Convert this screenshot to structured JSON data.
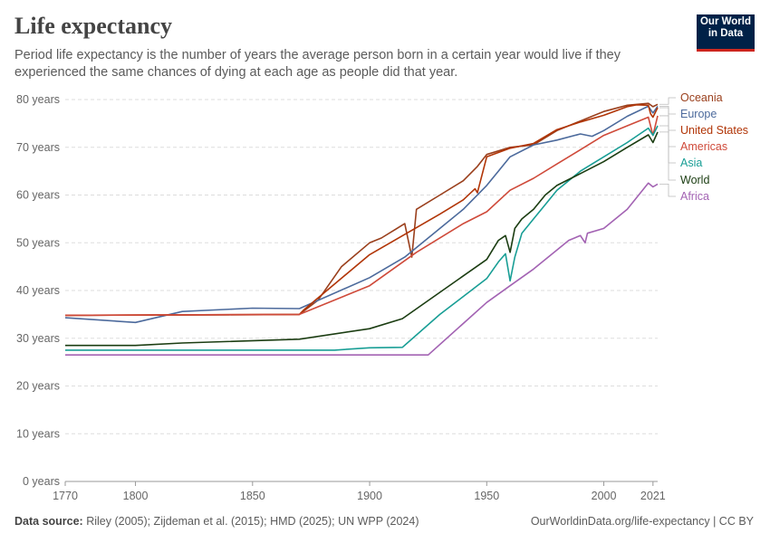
{
  "header": {
    "title": "Life expectancy",
    "subtitle": "Period life expectancy is the number of years the average person born in a certain year would live if they experienced the same chances of dying at each age as people did that year."
  },
  "logo": {
    "line1": "Our World",
    "line2": "in Data",
    "bg": "#002147",
    "accent": "#ce261e"
  },
  "footer": {
    "source_label": "Data source:",
    "source_text": "Riley (2005); Zijdeman et al. (2015); HMD (2025); UN WPP (2024)",
    "link": "OurWorldinData.org/life-expectancy | CC BY"
  },
  "chart_data": {
    "type": "line",
    "xlim": [
      1770,
      2023
    ],
    "ylim": [
      0,
      80
    ],
    "x_ticks": [
      1770,
      1800,
      1850,
      1900,
      1950,
      2000,
      2021
    ],
    "y_ticks": [
      0,
      10,
      20,
      30,
      40,
      50,
      60,
      70,
      80
    ],
    "y_tick_labels": [
      "0 years",
      "10 years",
      "20 years",
      "30 years",
      "40 years",
      "50 years",
      "60 years",
      "70 years",
      "80 years"
    ],
    "grid": "horizontal dashed",
    "legend": "right, labels at line ends",
    "series": [
      {
        "name": "Oceania",
        "color": "#9a3f1c",
        "points": [
          [
            1770,
            34.8
          ],
          [
            1840,
            34.9
          ],
          [
            1870,
            35.0
          ],
          [
            1878,
            38
          ],
          [
            1888,
            45
          ],
          [
            1900,
            50
          ],
          [
            1905,
            51
          ],
          [
            1910,
            52.5
          ],
          [
            1915,
            54
          ],
          [
            1918,
            47
          ],
          [
            1920,
            57
          ],
          [
            1930,
            60
          ],
          [
            1940,
            63
          ],
          [
            1946,
            66
          ],
          [
            1950,
            68.5
          ],
          [
            1960,
            70
          ],
          [
            1970,
            70.5
          ],
          [
            1980,
            73.5
          ],
          [
            1990,
            75.5
          ],
          [
            2000,
            77.5
          ],
          [
            2010,
            78.8
          ],
          [
            2019,
            79.2
          ],
          [
            2021,
            78.5
          ],
          [
            2023,
            79.0
          ]
        ]
      },
      {
        "name": "Europe",
        "color": "#4c6a9c",
        "points": [
          [
            1770,
            34.3
          ],
          [
            1800,
            33.3
          ],
          [
            1820,
            35.6
          ],
          [
            1850,
            36.3
          ],
          [
            1870,
            36.2
          ],
          [
            1900,
            42.7
          ],
          [
            1915,
            47
          ],
          [
            1930,
            53
          ],
          [
            1940,
            57
          ],
          [
            1950,
            62
          ],
          [
            1955,
            65
          ],
          [
            1960,
            68
          ],
          [
            1970,
            70.5
          ],
          [
            1980,
            71.5
          ],
          [
            1990,
            72.8
          ],
          [
            1995,
            72.3
          ],
          [
            2000,
            73.5
          ],
          [
            2010,
            76.5
          ],
          [
            2019,
            78.6
          ],
          [
            2021,
            77.2
          ],
          [
            2023,
            78.6
          ]
        ]
      },
      {
        "name": "United States",
        "color": "#b13507",
        "points": [
          [
            1770,
            34.8
          ],
          [
            1870,
            35.0
          ],
          [
            1872,
            36
          ],
          [
            1900,
            47.5
          ],
          [
            1930,
            56
          ],
          [
            1940,
            59
          ],
          [
            1945,
            61.3
          ],
          [
            1946,
            60.5
          ],
          [
            1950,
            68
          ],
          [
            1960,
            69.8
          ],
          [
            1970,
            70.8
          ],
          [
            1980,
            73.7
          ],
          [
            1990,
            75.3
          ],
          [
            2000,
            76.7
          ],
          [
            2010,
            78.5
          ],
          [
            2014,
            78.9
          ],
          [
            2019,
            78.8
          ],
          [
            2020,
            77.0
          ],
          [
            2021,
            76.3
          ],
          [
            2023,
            78.3
          ]
        ]
      },
      {
        "name": "Americas",
        "color": "#cf4a3a",
        "points": [
          [
            1770,
            34.8
          ],
          [
            1870,
            35.0
          ],
          [
            1900,
            41
          ],
          [
            1920,
            48
          ],
          [
            1940,
            54
          ],
          [
            1950,
            56.5
          ],
          [
            1960,
            61
          ],
          [
            1970,
            63.5
          ],
          [
            1980,
            66.5
          ],
          [
            1990,
            69.5
          ],
          [
            2000,
            72.5
          ],
          [
            2010,
            74.5
          ],
          [
            2019,
            76.3
          ],
          [
            2021,
            72.5
          ],
          [
            2023,
            76.6
          ]
        ]
      },
      {
        "name": "Asia",
        "color": "#189e95",
        "points": [
          [
            1770,
            27.5
          ],
          [
            1885,
            27.5
          ],
          [
            1900,
            28.0
          ],
          [
            1914,
            28.1
          ],
          [
            1930,
            35
          ],
          [
            1950,
            42.5
          ],
          [
            1955,
            46
          ],
          [
            1958,
            47.7
          ],
          [
            1960,
            42
          ],
          [
            1962,
            47
          ],
          [
            1965,
            52
          ],
          [
            1970,
            55
          ],
          [
            1975,
            58
          ],
          [
            1980,
            61
          ],
          [
            1990,
            65
          ],
          [
            2000,
            68
          ],
          [
            2010,
            71
          ],
          [
            2019,
            74
          ],
          [
            2021,
            72.5
          ],
          [
            2023,
            74.5
          ]
        ]
      },
      {
        "name": "World",
        "color": "#1b3d12",
        "points": [
          [
            1770,
            28.5
          ],
          [
            1800,
            28.5
          ],
          [
            1820,
            29.0
          ],
          [
            1870,
            29.8
          ],
          [
            1900,
            32.0
          ],
          [
            1914,
            34.1
          ],
          [
            1950,
            46.5
          ],
          [
            1955,
            50.5
          ],
          [
            1958,
            51.5
          ],
          [
            1960,
            48
          ],
          [
            1962,
            53
          ],
          [
            1965,
            55
          ],
          [
            1970,
            57
          ],
          [
            1975,
            60
          ],
          [
            1980,
            62
          ],
          [
            1990,
            64.5
          ],
          [
            2000,
            67
          ],
          [
            2010,
            70
          ],
          [
            2019,
            72.6
          ],
          [
            2021,
            71
          ],
          [
            2023,
            73.2
          ]
        ]
      },
      {
        "name": "Africa",
        "color": "#a363b3",
        "points": [
          [
            1770,
            26.5
          ],
          [
            1925,
            26.5
          ],
          [
            1950,
            37.5
          ],
          [
            1960,
            41
          ],
          [
            1970,
            44.5
          ],
          [
            1980,
            48.5
          ],
          [
            1985,
            50.5
          ],
          [
            1990,
            51.5
          ],
          [
            1992,
            50
          ],
          [
            1993,
            52
          ],
          [
            2000,
            53
          ],
          [
            2010,
            57
          ],
          [
            2019,
            62.5
          ],
          [
            2021,
            61.7
          ],
          [
            2023,
            62.3
          ]
        ]
      }
    ]
  }
}
